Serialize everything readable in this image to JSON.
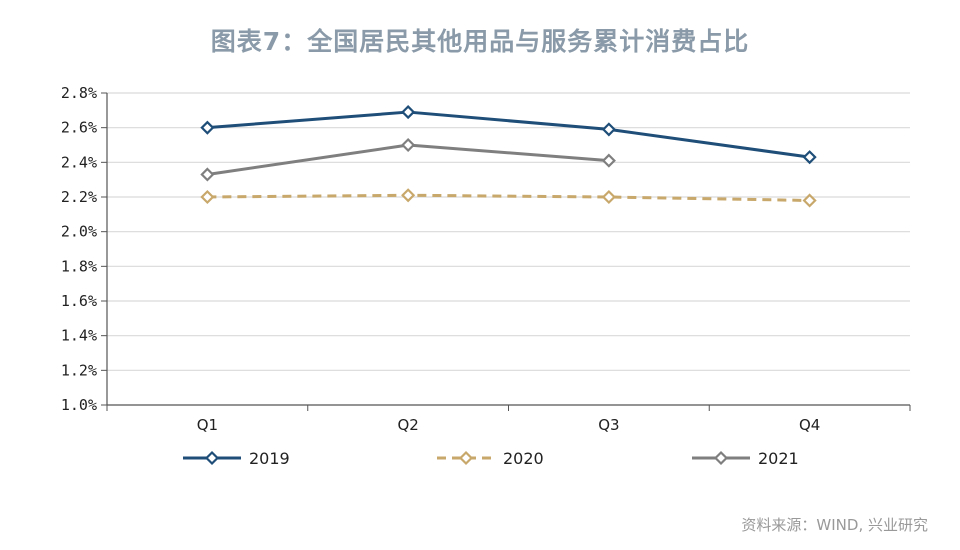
{
  "chart_data": {
    "type": "line",
    "title": "图表7：全国居民其他用品与服务累计消费占比",
    "categories": [
      "Q1",
      "Q2",
      "Q3",
      "Q4"
    ],
    "y_ticks": [
      "1.0%",
      "1.2%",
      "1.4%",
      "1.6%",
      "1.8%",
      "2.0%",
      "2.2%",
      "2.4%",
      "2.6%",
      "2.8%"
    ],
    "ylim": [
      1.0,
      2.8
    ],
    "grid": true,
    "legend_position": "bottom",
    "series": [
      {
        "name": "2019",
        "values": [
          2.6,
          2.69,
          2.59,
          2.43
        ],
        "color": "#1f4e79",
        "dash": "solid"
      },
      {
        "name": "2020",
        "values": [
          2.2,
          2.21,
          2.2,
          2.18
        ],
        "color": "#c8a86b",
        "dash": "dashed"
      },
      {
        "name": "2021",
        "values": [
          2.33,
          2.5,
          2.41,
          null
        ],
        "color": "#7f7f7f",
        "dash": "solid"
      }
    ]
  },
  "source": "资料来源：WIND, 兴业研究"
}
